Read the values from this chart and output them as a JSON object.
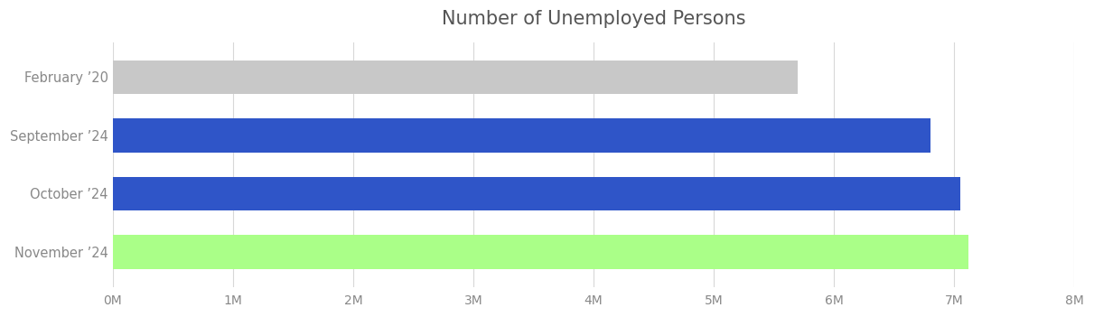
{
  "title": "Number of Unemployed Persons",
  "categories": [
    "February ’20",
    "September ’24",
    "October ’24",
    "November ’24"
  ],
  "values": [
    5700000,
    6800000,
    7050000,
    7120000
  ],
  "bar_colors": [
    "#c8c8c8",
    "#2f55c8",
    "#2f55c8",
    "#aaff88"
  ],
  "xlim": [
    0,
    8000000
  ],
  "xtick_values": [
    0,
    1000000,
    2000000,
    3000000,
    4000000,
    5000000,
    6000000,
    7000000,
    8000000
  ],
  "xtick_labels": [
    "0M",
    "1M",
    "2M",
    "3M",
    "4M",
    "5M",
    "6M",
    "7M",
    "8M"
  ],
  "background_color": "#ffffff",
  "grid_color": "#d8d8d8",
  "title_fontsize": 15,
  "label_fontsize": 10.5,
  "tick_fontsize": 10,
  "bar_height": 0.58
}
